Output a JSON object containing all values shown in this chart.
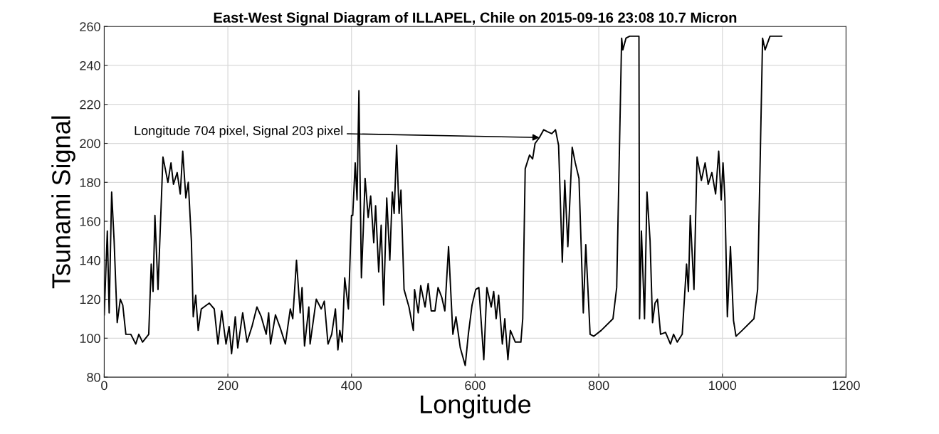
{
  "chart_data": {
    "type": "line",
    "title": "East-West Signal Diagram of ILLAPEL, Chile on 2015-09-16 23:08 10.7 Micron",
    "xlabel": "Longitude",
    "ylabel": "Tsunami Signal",
    "xlim": [
      0,
      1200
    ],
    "xticks": [
      0,
      200,
      400,
      600,
      800,
      1000,
      1200
    ],
    "ylim": [
      80,
      260
    ],
    "yticks": [
      80,
      100,
      120,
      140,
      160,
      180,
      200,
      220,
      240,
      260
    ],
    "grid": true,
    "annotations": [
      {
        "text": "Longitude 704 pixel, Signal 203 pixel",
        "x": 704,
        "y": 203
      }
    ],
    "series": [
      {
        "color": "#000000",
        "x": [
          0,
          5,
          8,
          12,
          16,
          21,
          26,
          30,
          35,
          43,
          51,
          56,
          62,
          72,
          76,
          79,
          82,
          87,
          95,
          103,
          108,
          112,
          118,
          123,
          127,
          132,
          136,
          141,
          144,
          148,
          152,
          157,
          170,
          178,
          184,
          190,
          197,
          202,
          206,
          212,
          216,
          224,
          231,
          239,
          247,
          254,
          262,
          266,
          269,
          277,
          285,
          293,
          301,
          305,
          311,
          317,
          320,
          324,
          331,
          333,
          343,
          351,
          356,
          362,
          368,
          374,
          378,
          381,
          385,
          389,
          395,
          400,
          402,
          406,
          409,
          412,
          416,
          419,
          422,
          427,
          431,
          436,
          439,
          444,
          448,
          452,
          457,
          462,
          466,
          469,
          473,
          477,
          480,
          485,
          493,
          500,
          502,
          508,
          512,
          519,
          524,
          529,
          535,
          540,
          546,
          551,
          557,
          564,
          569,
          576,
          584,
          589,
          595,
          601,
          606,
          614,
          619,
          626,
          630,
          634,
          638,
          644,
          648,
          653,
          657,
          665,
          674,
          677,
          681,
          688,
          693,
          697,
          704,
          711,
          717,
          724,
          730,
          735,
          741,
          745,
          750,
          757,
          762,
          768,
          775,
          779,
          786,
          792,
          804,
          823,
          829,
          837,
          839,
          844,
          850,
          865,
          866,
          869,
          874,
          878,
          883,
          887,
          891,
          895,
          900,
          908,
          916,
          921,
          927,
          935,
          942,
          945,
          948,
          954,
          959,
          966,
          972,
          977,
          983,
          989,
          994,
          998,
          1001,
          1004,
          1008,
          1013,
          1018,
          1022,
          1032,
          1051,
          1057,
          1065,
          1069,
          1077,
          1096
        ],
        "values": [
          112,
          155,
          113,
          175,
          150,
          108,
          120,
          117,
          102,
          102,
          97,
          102,
          98,
          102,
          138,
          124,
          163,
          125,
          193,
          180,
          190,
          179,
          185,
          174,
          196,
          172,
          180,
          150,
          111,
          122,
          104,
          115,
          118,
          115,
          97,
          114,
          97,
          106,
          92,
          111,
          95,
          113,
          98,
          106,
          116,
          111,
          102,
          113,
          97,
          112,
          105,
          97,
          115,
          110,
          140,
          113,
          126,
          96,
          116,
          97,
          120,
          115,
          119,
          97,
          102,
          115,
          94,
          104,
          98,
          131,
          115,
          163,
          163,
          190,
          171,
          227,
          131,
          155,
          182,
          162,
          173,
          149,
          168,
          134,
          158,
          117,
          172,
          140,
          175,
          164,
          199,
          164,
          176,
          125,
          116,
          104,
          125,
          113,
          127,
          116,
          128,
          114,
          114,
          126,
          121,
          114,
          147,
          102,
          111,
          95,
          86,
          102,
          117,
          125,
          126,
          89,
          126,
          116,
          124,
          110,
          122,
          97,
          110,
          89,
          104,
          98,
          98,
          110,
          187,
          194,
          192,
          200,
          203,
          207,
          206,
          205,
          207,
          199,
          139,
          181,
          147,
          198,
          190,
          182,
          113,
          148,
          102,
          101,
          104,
          110,
          126,
          254,
          248,
          254,
          255,
          255,
          110,
          155,
          110,
          175,
          150,
          108,
          118,
          120,
          102,
          103,
          97,
          102,
          98,
          102,
          138,
          124,
          163,
          125,
          193,
          181,
          190,
          179,
          185,
          174,
          196,
          171,
          190,
          172,
          111,
          147,
          109,
          101,
          104,
          110,
          125,
          254,
          248,
          255,
          255
        ]
      }
    ]
  }
}
